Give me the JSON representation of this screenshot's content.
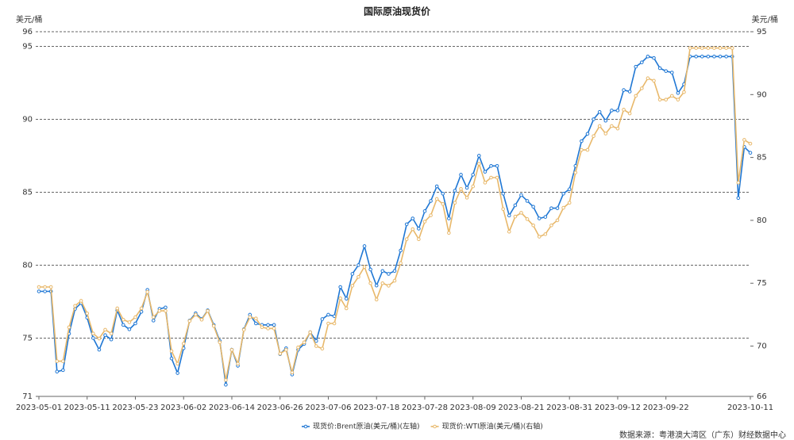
{
  "chart_data": {
    "type": "line",
    "title": "国际原油现货价",
    "ylabel": "美元/桶",
    "y2label": "美元/桶",
    "source": "数据来源：粤港澳大湾区（广东）财经数据中心",
    "categories": [
      "2023-05-01",
      null,
      null,
      null,
      null,
      null,
      null,
      null,
      "2023-05-11",
      null,
      null,
      null,
      null,
      null,
      null,
      null,
      "2023-05-23",
      null,
      null,
      null,
      null,
      null,
      null,
      null,
      "2023-06-02",
      null,
      null,
      null,
      null,
      null,
      null,
      null,
      "2023-06-14",
      null,
      null,
      null,
      null,
      null,
      null,
      null,
      "2023-06-26",
      null,
      null,
      null,
      null,
      null,
      null,
      null,
      "2023-07-06",
      null,
      null,
      null,
      null,
      null,
      null,
      null,
      "2023-07-18",
      null,
      null,
      null,
      null,
      null,
      null,
      null,
      "2023-07-28",
      null,
      null,
      null,
      null,
      null,
      null,
      null,
      "2023-08-09",
      null,
      null,
      null,
      null,
      null,
      null,
      null,
      "2023-08-21",
      null,
      null,
      null,
      null,
      null,
      null,
      null,
      "2023-08-31",
      null,
      null,
      null,
      null,
      null,
      null,
      null,
      "2023-09-12",
      null,
      null,
      null,
      null,
      null,
      null,
      null,
      "2023-09-22",
      null,
      null,
      null,
      null,
      null,
      null,
      null,
      null,
      null,
      null,
      null,
      null,
      null,
      "2023-10-11"
    ],
    "series": [
      {
        "name": "现货价:Brent原油(美元/桶)(左轴)",
        "color": "#1f77d4",
        "axis": "y",
        "values": [
          78.2,
          78.2,
          78.2,
          72.7,
          72.8,
          75.3,
          77.0,
          77.4,
          76.4,
          75.0,
          74.2,
          75.2,
          74.9,
          76.9,
          75.9,
          75.6,
          76.0,
          76.8,
          78.3,
          76.2,
          77.0,
          77.1,
          73.6,
          72.6,
          74.3,
          76.2,
          76.7,
          76.3,
          76.9,
          75.9,
          74.8,
          71.8,
          74.2,
          73.1,
          75.6,
          76.6,
          76.0,
          75.9,
          75.9,
          75.9,
          73.9,
          74.3,
          72.5,
          74.2,
          74.6,
          75.4,
          74.8,
          76.3,
          76.6,
          76.5,
          78.5,
          77.7,
          79.4,
          80.0,
          81.3,
          79.7,
          78.6,
          79.6,
          79.4,
          79.6,
          81.0,
          82.8,
          83.2,
          82.5,
          83.7,
          84.4,
          85.4,
          84.9,
          83.2,
          85.1,
          86.2,
          85.3,
          86.2,
          87.5,
          86.4,
          86.8,
          86.8,
          84.9,
          83.4,
          84.1,
          84.8,
          84.4,
          84.0,
          83.2,
          83.3,
          83.9,
          83.9,
          84.9,
          85.2,
          86.8,
          88.5,
          89.0,
          90.0,
          90.5,
          89.9,
          90.6,
          90.6,
          92.0,
          91.9,
          93.6,
          93.9,
          94.3,
          94.2,
          93.5,
          93.3,
          93.2,
          91.8,
          92.4,
          94.3,
          94.3,
          94.3,
          94.3,
          94.3,
          94.3,
          94.3,
          94.3,
          84.6,
          88.1,
          87.7
        ]
      },
      {
        "name": "现货价:WTI原油(美元/桶)(右轴)",
        "color": "#e8b86a",
        "axis": "y2",
        "values": [
          74.7,
          74.7,
          74.7,
          68.8,
          68.8,
          71.5,
          73.2,
          73.6,
          72.6,
          71.0,
          70.6,
          71.3,
          71.0,
          73.0,
          72.1,
          71.9,
          72.3,
          73.0,
          74.3,
          72.3,
          72.8,
          72.8,
          69.6,
          68.6,
          70.2,
          72.0,
          72.5,
          72.1,
          72.8,
          71.6,
          70.3,
          67.3,
          69.7,
          68.6,
          71.3,
          72.3,
          72.2,
          71.5,
          71.4,
          71.4,
          69.4,
          69.7,
          67.9,
          69.9,
          70.3,
          71.1,
          70.0,
          69.8,
          71.8,
          71.8,
          73.8,
          73.0,
          74.8,
          75.5,
          76.3,
          75.0,
          73.7,
          75.0,
          74.8,
          75.2,
          76.6,
          78.5,
          79.3,
          78.5,
          79.9,
          80.4,
          81.7,
          81.3,
          79.0,
          81.4,
          82.5,
          81.8,
          82.7,
          84.5,
          83.0,
          83.4,
          83.4,
          80.9,
          79.1,
          80.3,
          80.6,
          80.1,
          79.6,
          78.7,
          78.9,
          79.6,
          80.0,
          81.0,
          81.4,
          83.8,
          85.6,
          85.6,
          86.7,
          87.5,
          86.9,
          87.5,
          87.3,
          88.8,
          88.5,
          89.9,
          90.5,
          91.3,
          91.1,
          89.6,
          89.6,
          89.9,
          89.6,
          90.2,
          93.7,
          93.7,
          93.7,
          93.7,
          93.7,
          93.7,
          93.7,
          93.7,
          83.0,
          86.4,
          86.1
        ]
      }
    ],
    "ylim": [
      71,
      96
    ],
    "yticks": [
      71,
      75,
      80,
      85,
      90,
      95,
      96
    ],
    "y2lim": [
      66,
      95
    ],
    "y2ticks": [
      66,
      70,
      75,
      80,
      85,
      90,
      95
    ],
    "grid": true,
    "legend": "bottom"
  }
}
